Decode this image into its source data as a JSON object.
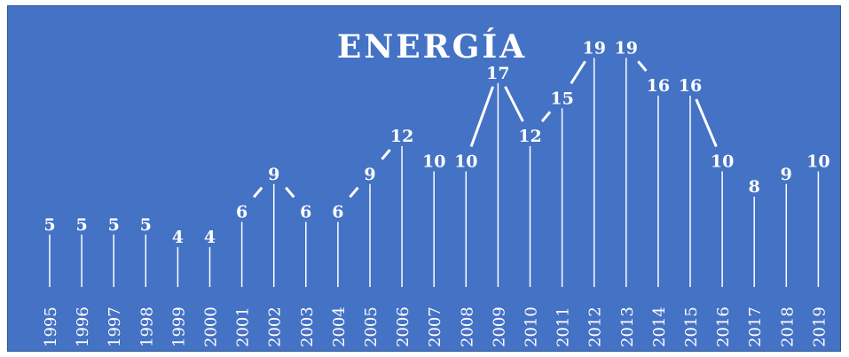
{
  "chart_data": {
    "type": "line",
    "title": "ENERGÍA",
    "xlabel": "",
    "ylabel": "",
    "categories": [
      "1995",
      "1996",
      "1997",
      "1998",
      "1999",
      "2000",
      "2001",
      "2002",
      "2003",
      "2004",
      "2005",
      "2006",
      "2007",
      "2008",
      "2009",
      "2010",
      "2011",
      "2012",
      "2013",
      "2014",
      "2015",
      "2016",
      "2017",
      "2018",
      "2019"
    ],
    "series": [
      {
        "values": [
          5,
          5,
          5,
          5,
          4,
          4,
          6,
          9,
          6,
          6,
          9,
          12,
          10,
          10,
          17,
          12,
          15,
          19,
          19,
          16,
          16,
          10,
          8,
          9,
          10
        ]
      }
    ],
    "ylim": [
      0,
      20
    ],
    "grid": false,
    "legend": "none",
    "drop_lines": true,
    "colors": {
      "background": "#4472c4",
      "line": "#ffffff",
      "text": "#ffffff"
    }
  }
}
